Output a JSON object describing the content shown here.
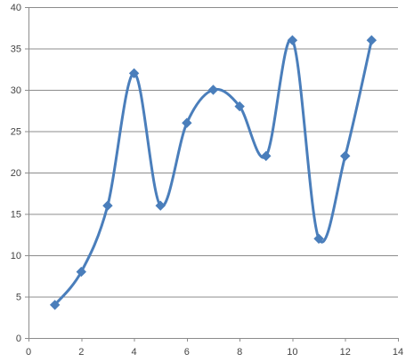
{
  "chart_data": {
    "type": "scatter",
    "title": "",
    "xlabel": "",
    "ylabel": "",
    "xlim": [
      0,
      14
    ],
    "ylim": [
      0,
      40
    ],
    "x_ticks": [
      0,
      2,
      4,
      6,
      8,
      10,
      12,
      14
    ],
    "y_ticks": [
      0,
      5,
      10,
      15,
      20,
      25,
      30,
      35,
      40
    ],
    "x_tick_labels": [
      "0",
      "2",
      "4",
      "6",
      "8",
      "10",
      "12",
      "14"
    ],
    "y_tick_labels": [
      "0",
      "5",
      "10",
      "15",
      "20",
      "25",
      "30",
      "35",
      "40"
    ],
    "grid": "horizontal",
    "legend": "none",
    "line_style": "smoothed",
    "marker": "diamond",
    "series": [
      {
        "color": "#4a7ebb",
        "x": [
          1,
          2,
          3,
          4,
          5,
          6,
          7,
          8,
          9,
          10,
          11,
          12,
          13
        ],
        "y": [
          4,
          8,
          16,
          32,
          16,
          26,
          30,
          28,
          22,
          36,
          12,
          22,
          36
        ]
      }
    ]
  }
}
